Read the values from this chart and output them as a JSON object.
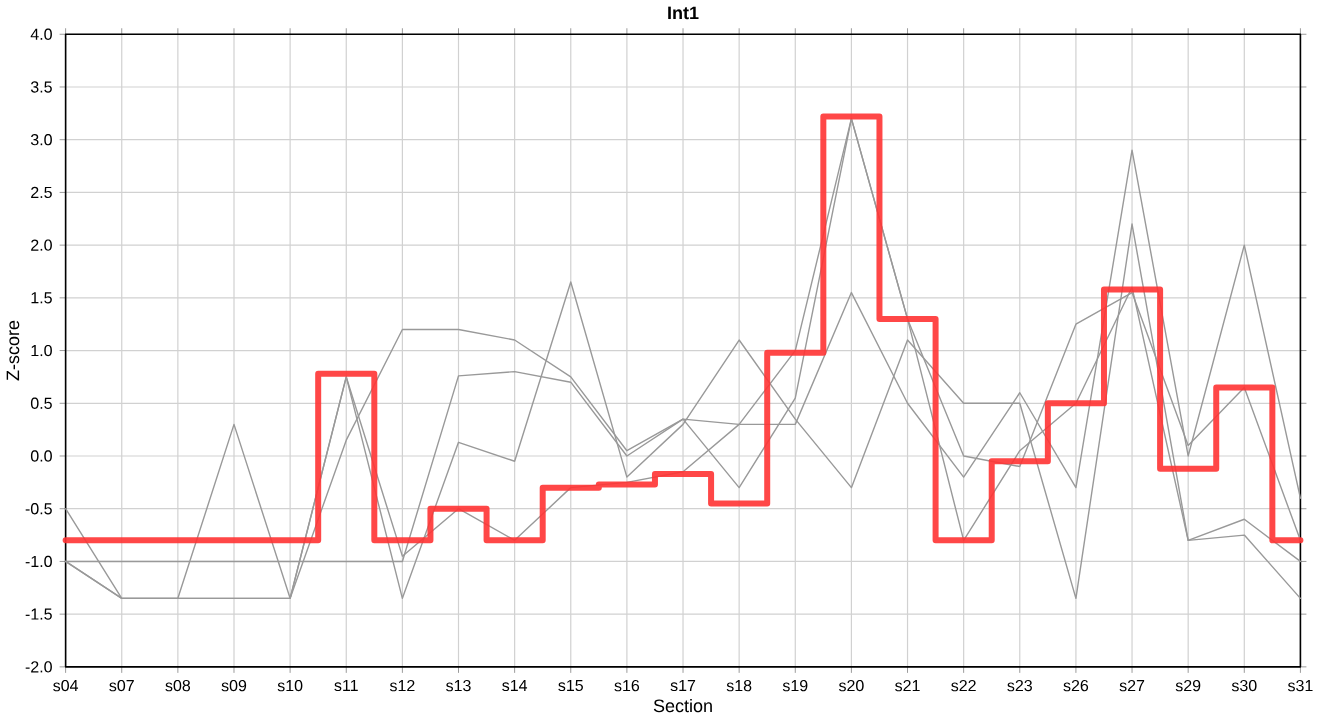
{
  "chart_data": {
    "type": "line",
    "title": "Int1",
    "xlabel": "Section",
    "ylabel": "Z-score",
    "categories": [
      "s04",
      "s07",
      "s08",
      "s09",
      "s10",
      "s11",
      "s12",
      "s13",
      "s14",
      "s15",
      "s16",
      "s17",
      "s18",
      "s19",
      "s20",
      "s21",
      "s22",
      "s23",
      "s26",
      "s27",
      "s29",
      "s30",
      "s31"
    ],
    "ylim": [
      -2,
      4
    ],
    "yticks": [
      {
        "value": -2,
        "label": "-2.0"
      },
      {
        "value": -1.5,
        "label": "-1.5"
      },
      {
        "value": -1,
        "label": "-1.0"
      },
      {
        "value": -0.5,
        "label": "-0.5"
      },
      {
        "value": 0,
        "label": "0.0"
      },
      {
        "value": 0.5,
        "label": "0.5"
      },
      {
        "value": 1,
        "label": "1.0"
      },
      {
        "value": 1.5,
        "label": "1.5"
      },
      {
        "value": 2,
        "label": "2.0"
      },
      {
        "value": 2.5,
        "label": "2.5"
      },
      {
        "value": 3,
        "label": "3.0"
      },
      {
        "value": 3.5,
        "label": "3.5"
      },
      {
        "value": 4,
        "label": "4.0"
      }
    ],
    "grid": true,
    "marker": "none",
    "line_style": "solid",
    "series": [
      {
        "color": "#999999",
        "values": [
          -0.5,
          -1.35,
          -1.35,
          -1.35,
          -1.35,
          0.15,
          1.2,
          1.2,
          1.1,
          0.75,
          0.05,
          0.35,
          0.3,
          0.3,
          1.55,
          0.5,
          -0.2,
          0.6,
          -0.3,
          2.9,
          0.0,
          2.0,
          -0.4
        ]
      },
      {
        "color": "#999999",
        "values": [
          -1.0,
          -1.35,
          -1.35,
          0.3,
          -1.35,
          0.75,
          -1.35,
          0.13,
          -0.05,
          1.65,
          -0.2,
          0.3,
          1.1,
          0.35,
          -0.3,
          1.1,
          0.5,
          0.5,
          -1.35,
          2.2,
          -0.8,
          -0.75,
          -1.35
        ]
      },
      {
        "color": "#999999",
        "values": [
          -1.0,
          -1.0,
          -1.0,
          -1.0,
          -1.0,
          -1.0,
          -1.0,
          0.76,
          0.8,
          0.7,
          0.0,
          0.35,
          -0.3,
          0.55,
          3.2,
          1.3,
          -0.8,
          0.05,
          0.5,
          1.6,
          -0.8,
          -0.6,
          -1.0
        ]
      },
      {
        "color": "#999999",
        "values": [
          -1.0,
          -1.35,
          -1.35,
          -1.35,
          -1.35,
          0.75,
          -0.95,
          -0.5,
          -0.8,
          -0.3,
          -0.25,
          -0.15,
          0.3,
          1.0,
          3.2,
          1.3,
          0.0,
          -0.1,
          1.25,
          1.55,
          0.1,
          0.65,
          -0.8
        ]
      },
      {
        "type": "step",
        "color": "#ff3333",
        "values": [
          -0.8,
          -0.8,
          -0.8,
          -0.8,
          -0.8,
          0.78,
          -0.8,
          -0.5,
          -0.8,
          -0.3,
          -0.27,
          -0.17,
          -0.45,
          0.98,
          3.22,
          1.3,
          -0.8,
          -0.05,
          0.5,
          1.58,
          -0.12,
          0.65,
          -0.8
        ]
      }
    ]
  }
}
